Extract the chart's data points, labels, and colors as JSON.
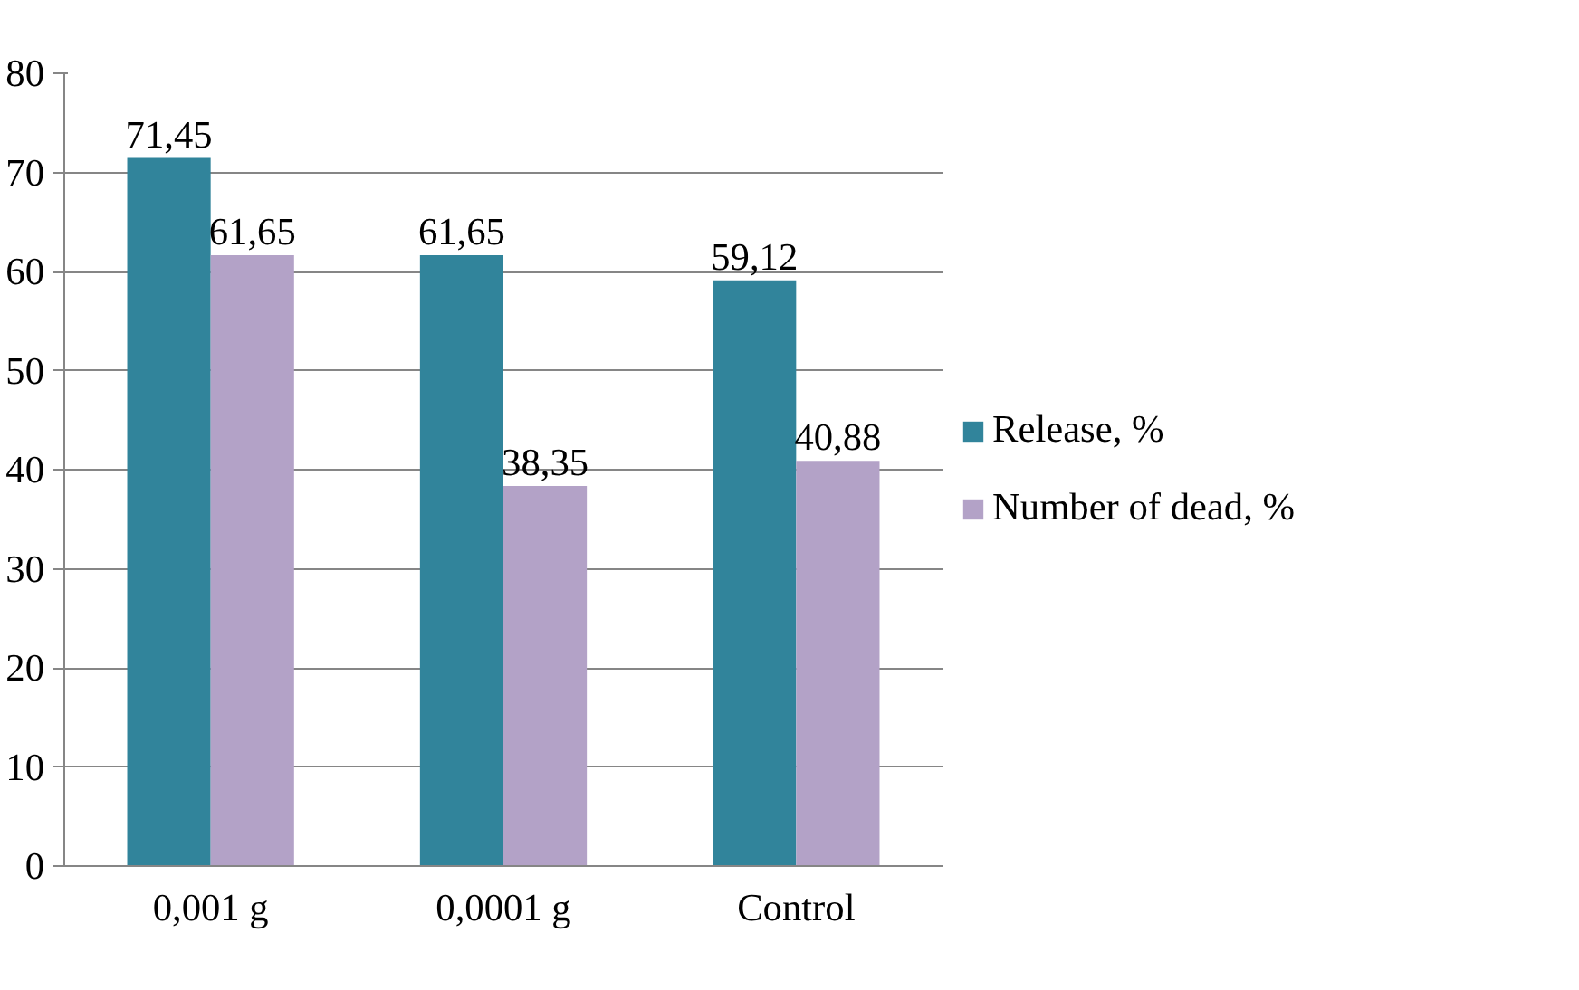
{
  "chart_data": {
    "type": "bar",
    "categories": [
      "0,001 g",
      "0,0001 g",
      "Control"
    ],
    "series": [
      {
        "name": "Release, %",
        "color": "#31849b",
        "values": [
          71.45,
          61.65,
          59.12
        ],
        "value_labels": [
          "71,45",
          "61,65",
          "59,12"
        ]
      },
      {
        "name": "Number of dead, %",
        "color": "#b3a2c7",
        "values": [
          61.65,
          38.35,
          40.88
        ],
        "value_labels": [
          "61,65",
          "38,35",
          "40,88"
        ]
      }
    ],
    "ylim": [
      0,
      80
    ],
    "yticks": [
      0,
      10,
      20,
      30,
      40,
      50,
      60,
      70,
      80
    ],
    "grid": "y",
    "legend": "right"
  }
}
